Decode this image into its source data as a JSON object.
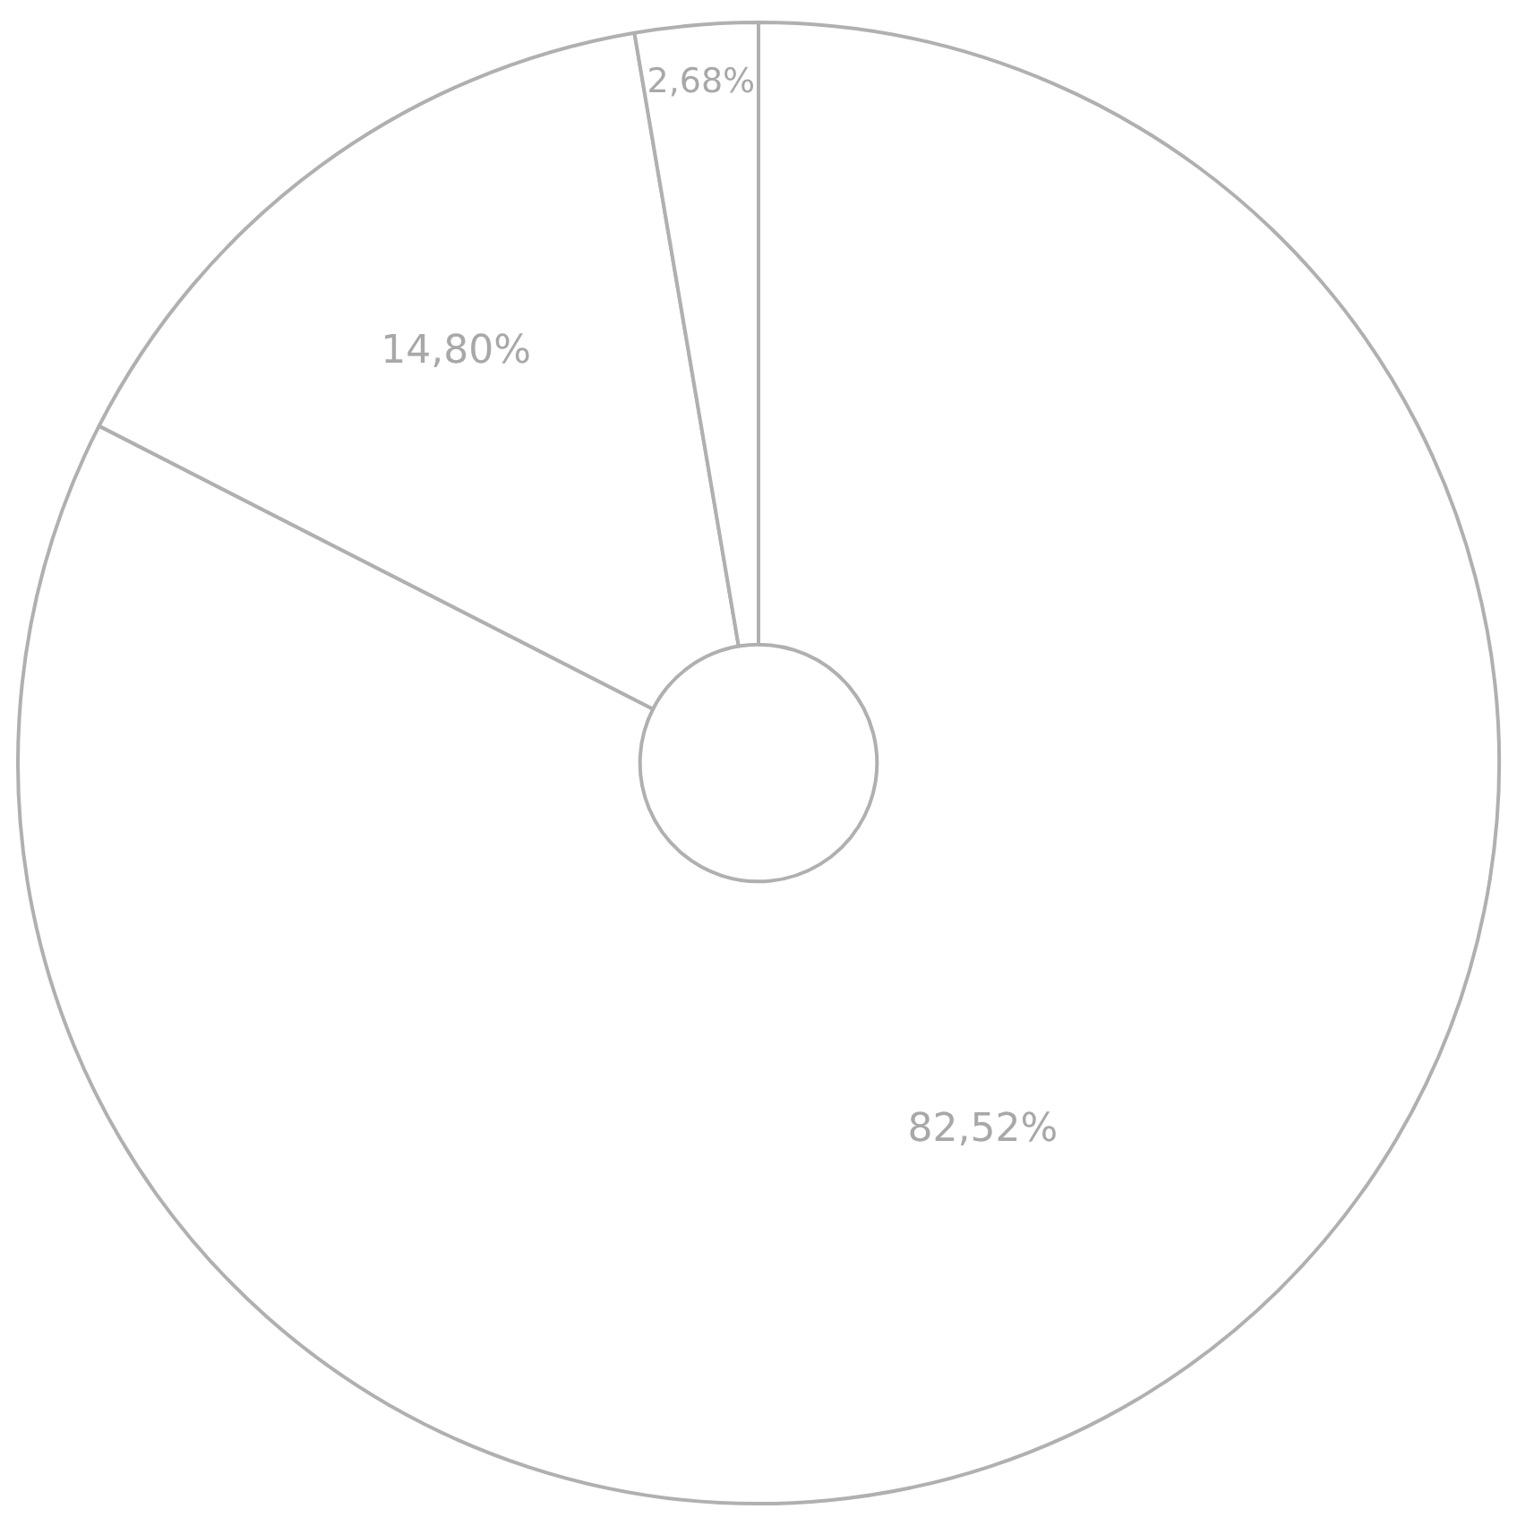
{
  "chart_data": {
    "type": "donut",
    "categories": [
      null,
      null,
      null
    ],
    "values": [
      82.52,
      14.8,
      2.68
    ],
    "colors": [
      "#ffffff",
      "#ffffff",
      "#ffffff"
    ],
    "value_labels": [
      "82,52%",
      "14,80%",
      "2,68%"
    ],
    "legend": false
  }
}
